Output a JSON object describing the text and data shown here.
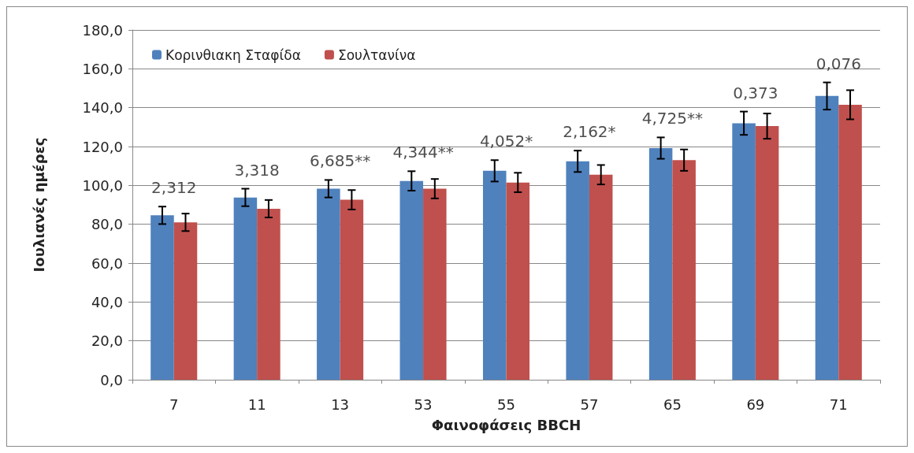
{
  "chart_data": {
    "type": "bar",
    "xlabel": "Φαινοφάσεις BBCH",
    "ylabel": "Ιουλιανές ημέρες",
    "categories": [
      "7",
      "11",
      "13",
      "53",
      "55",
      "57",
      "65",
      "69",
      "71"
    ],
    "series": [
      {
        "name": "Κορινθιακη Σταφίδα",
        "color": "#4f81bd",
        "values": [
          84.6,
          93.8,
          98.3,
          102.3,
          107.5,
          112.4,
          119.2,
          132,
          146
        ],
        "errors": [
          4.5,
          4.5,
          4.5,
          5,
          5.5,
          5.5,
          5.5,
          6,
          7
        ]
      },
      {
        "name": "Σουλτανίνα",
        "color": "#c0504d",
        "values": [
          81,
          88,
          92.6,
          98.3,
          101.5,
          105.5,
          113,
          130.5,
          141.5
        ],
        "errors": [
          4.5,
          4.5,
          5,
          5,
          5,
          5,
          5.5,
          6.5,
          7.5
        ]
      }
    ],
    "ylim": [
      0,
      180
    ],
    "yticks": [
      {
        "value": 0,
        "label": "0,0"
      },
      {
        "value": 20,
        "label": "20,0"
      },
      {
        "value": 40,
        "label": "40,0"
      },
      {
        "value": 60,
        "label": "60,0"
      },
      {
        "value": 80,
        "label": "80,0"
      },
      {
        "value": 100,
        "label": "100,0"
      },
      {
        "value": 120,
        "label": "120,0"
      },
      {
        "value": 140,
        "label": "140,0"
      },
      {
        "value": 160,
        "label": "160,0"
      },
      {
        "value": 180,
        "label": "180,0"
      }
    ],
    "annotations": [
      "2,312",
      "3,318",
      "6,685**",
      "4,344**",
      "4,052*",
      "2,162*",
      "4,725**",
      "0,373",
      "0,076"
    ],
    "grid": "y",
    "legend": "top left"
  }
}
